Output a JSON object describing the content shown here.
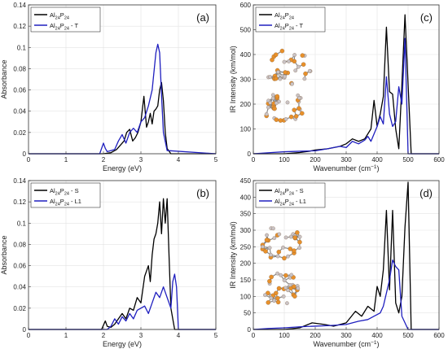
{
  "chart_data": [
    {
      "id": "a",
      "type": "line",
      "panel_label": "(a)",
      "xlabel": "Energy (eV)",
      "ylabel": "Absorbance",
      "xlim": [
        0,
        5
      ],
      "ylim": [
        0,
        0.14
      ],
      "xticks": [
        0,
        1,
        2,
        3,
        4,
        5
      ],
      "yticks": [
        0,
        0.02,
        0.04,
        0.06,
        0.08,
        0.1,
        0.12,
        0.14
      ],
      "ytick_labels": [
        "0",
        "0.02",
        "0.04",
        "0.06",
        "0.08",
        "0.1",
        "0.12",
        "0.14"
      ],
      "grid": true,
      "legend_position": "top-left",
      "series": [
        {
          "name": "Al24P24",
          "legend_base": "Al",
          "legend_sub1": "24",
          "legend_mid": "P",
          "legend_sub2": "24",
          "legend_suffix": "",
          "color": "#000000",
          "x": [
            0,
            2.0,
            2.2,
            2.35,
            2.45,
            2.55,
            2.62,
            2.7,
            2.78,
            2.85,
            2.92,
            3.0,
            3.08,
            3.15,
            3.2,
            3.25,
            3.3,
            3.35,
            3.4,
            3.45,
            3.5,
            3.55,
            3.6,
            3.65,
            3.7,
            3.8,
            5
          ],
          "y": [
            0,
            0,
            0.001,
            0.004,
            0.008,
            0.012,
            0.02,
            0.023,
            0.012,
            0.015,
            0.02,
            0.03,
            0.054,
            0.025,
            0.03,
            0.038,
            0.028,
            0.04,
            0.042,
            0.045,
            0.06,
            0.067,
            0.05,
            0.02,
            0.005,
            0,
            0
          ]
        },
        {
          "name": "Al24P24 - T",
          "legend_base": "Al",
          "legend_sub1": "24",
          "legend_mid": "P",
          "legend_sub2": "24",
          "legend_suffix": " - T",
          "color": "#1f1fbf",
          "x": [
            0,
            1.9,
            2.0,
            2.05,
            2.1,
            2.2,
            2.3,
            2.4,
            2.5,
            2.6,
            2.7,
            2.8,
            2.9,
            3.0,
            3.1,
            3.2,
            3.3,
            3.4,
            3.45,
            3.5,
            3.55,
            3.6,
            3.7,
            5
          ],
          "y": [
            0,
            0,
            0.01,
            0.005,
            0.002,
            0.003,
            0.004,
            0.012,
            0.018,
            0.01,
            0.02,
            0.024,
            0.02,
            0.03,
            0.034,
            0.045,
            0.06,
            0.095,
            0.103,
            0.095,
            0.055,
            0.02,
            0.003,
            0
          ]
        }
      ]
    },
    {
      "id": "b",
      "type": "line",
      "panel_label": "(b)",
      "xlabel": "Energy (eV)",
      "ylabel": "Absorbance",
      "xlim": [
        0,
        5
      ],
      "ylim": [
        0,
        0.14
      ],
      "xticks": [
        0,
        1,
        2,
        3,
        4,
        5
      ],
      "yticks": [
        0,
        0.02,
        0.04,
        0.06,
        0.08,
        0.1,
        0.12,
        0.14
      ],
      "ytick_labels": [
        "0",
        "0.02",
        "0.04",
        "0.06",
        "0.08",
        "0.1",
        "0.12",
        "0.14"
      ],
      "grid": true,
      "legend_position": "top-left",
      "series": [
        {
          "name": "Al24P24 - S",
          "legend_base": "Al",
          "legend_sub1": "24",
          "legend_mid": "P",
          "legend_sub2": "24",
          "legend_suffix": " - S",
          "color": "#000000",
          "x": [
            0,
            1.95,
            2.05,
            2.1,
            2.2,
            2.3,
            2.4,
            2.5,
            2.6,
            2.7,
            2.8,
            2.9,
            3.0,
            3.1,
            3.2,
            3.25,
            3.3,
            3.35,
            3.4,
            3.45,
            3.5,
            3.55,
            3.6,
            3.65,
            3.7,
            3.75,
            3.8,
            3.9,
            5
          ],
          "y": [
            0,
            0,
            0.008,
            0.003,
            0.002,
            0.005,
            0.01,
            0.015,
            0.01,
            0.02,
            0.018,
            0.03,
            0.025,
            0.05,
            0.06,
            0.045,
            0.07,
            0.085,
            0.09,
            0.1,
            0.12,
            0.09,
            0.123,
            0.1,
            0.123,
            0.07,
            0.02,
            0,
            0
          ]
        },
        {
          "name": "Al24P24 - L1",
          "legend_base": "Al",
          "legend_sub1": "24",
          "legend_mid": "P",
          "legend_sub2": "24",
          "legend_suffix": " - L1",
          "color": "#1f1fbf",
          "x": [
            0,
            2.1,
            2.2,
            2.3,
            2.4,
            2.5,
            2.6,
            2.7,
            2.8,
            2.9,
            3.0,
            3.1,
            3.2,
            3.3,
            3.4,
            3.5,
            3.6,
            3.7,
            3.8,
            3.85,
            3.9,
            3.95,
            4.0,
            5
          ],
          "y": [
            0,
            0,
            0.003,
            0.01,
            0.005,
            0.012,
            0.008,
            0.015,
            0.01,
            0.018,
            0.02,
            0.022,
            0.015,
            0.025,
            0.035,
            0.03,
            0.04,
            0.03,
            0.02,
            0.045,
            0.052,
            0.04,
            0,
            0
          ]
        }
      ]
    },
    {
      "id": "c",
      "type": "line",
      "panel_label": "(c)",
      "xlabel": "Wavenumber (cm",
      "xlabel_sup": "−1",
      "xlabel_end": ")",
      "ylabel": "IR Intensity (km/mol)",
      "xlim": [
        0,
        600
      ],
      "ylim": [
        0,
        600
      ],
      "xticks": [
        0,
        100,
        200,
        300,
        400,
        500,
        600
      ],
      "yticks": [
        0,
        100,
        200,
        300,
        400,
        500,
        600
      ],
      "ytick_labels": [
        "0",
        "100",
        "200",
        "300",
        "400",
        "500",
        "600"
      ],
      "grid": true,
      "legend_position": "top-left",
      "series": [
        {
          "name": "Al24P24",
          "legend_base": "Al",
          "legend_sub1": "24",
          "legend_mid": "P",
          "legend_sub2": "24",
          "legend_suffix": "",
          "color": "#000000",
          "x": [
            0,
            100,
            150,
            180,
            200,
            240,
            280,
            300,
            320,
            340,
            360,
            380,
            390,
            400,
            410,
            420,
            430,
            440,
            450,
            460,
            470,
            480,
            490,
            500,
            510,
            600
          ],
          "y": [
            0,
            0,
            5,
            10,
            15,
            20,
            30,
            40,
            60,
            50,
            60,
            100,
            215,
            110,
            160,
            230,
            510,
            250,
            240,
            100,
            20,
            280,
            560,
            280,
            0,
            0
          ]
        },
        {
          "name": "Al24P24 - T",
          "legend_base": "Al",
          "legend_sub1": "24",
          "legend_mid": "P",
          "legend_sub2": "24",
          "legend_suffix": " - T",
          "color": "#1f1fbf",
          "x": [
            0,
            60,
            100,
            150,
            200,
            240,
            280,
            300,
            320,
            340,
            360,
            370,
            380,
            390,
            400,
            410,
            420,
            430,
            440,
            450,
            460,
            470,
            480,
            490,
            500,
            600
          ],
          "y": [
            0,
            5,
            8,
            10,
            12,
            20,
            30,
            25,
            50,
            40,
            55,
            70,
            50,
            80,
            110,
            150,
            120,
            310,
            160,
            110,
            130,
            270,
            200,
            465,
            0,
            0
          ]
        }
      ]
    },
    {
      "id": "d",
      "type": "line",
      "panel_label": "(d)",
      "xlabel": "Wavenumber (cm",
      "xlabel_sup": "−1",
      "xlabel_end": ")",
      "ylabel": "IR Intensity (km/mol)",
      "xlim": [
        0,
        600
      ],
      "ylim": [
        0,
        450
      ],
      "xticks": [
        0,
        100,
        200,
        300,
        400,
        500,
        600
      ],
      "yticks": [
        0,
        50,
        100,
        150,
        200,
        250,
        300,
        350,
        400,
        450
      ],
      "ytick_labels": [
        "0",
        "50",
        "100",
        "150",
        "200",
        "250",
        "300",
        "350",
        "400",
        "450"
      ],
      "grid": true,
      "legend_position": "top-left",
      "series": [
        {
          "name": "Al24P24 - S",
          "legend_base": "Al",
          "legend_sub1": "24",
          "legend_mid": "P",
          "legend_sub2": "24",
          "legend_suffix": " - S",
          "color": "#000000",
          "x": [
            0,
            100,
            150,
            190,
            230,
            260,
            300,
            330,
            350,
            370,
            390,
            400,
            410,
            420,
            430,
            440,
            450,
            460,
            470,
            480,
            490,
            500,
            510,
            600
          ],
          "y": [
            0,
            0,
            5,
            20,
            15,
            10,
            20,
            55,
            40,
            70,
            55,
            130,
            100,
            180,
            360,
            120,
            360,
            80,
            50,
            100,
            310,
            445,
            0,
            0
          ]
        },
        {
          "name": "Al24P24 - L1",
          "legend_base": "Al",
          "legend_sub1": "24",
          "legend_mid": "P",
          "legend_sub2": "24",
          "legend_suffix": " - L1",
          "color": "#1f1fbf",
          "x": [
            0,
            50,
            100,
            150,
            200,
            250,
            300,
            340,
            370,
            390,
            410,
            420,
            430,
            440,
            450,
            460,
            470,
            480,
            490,
            500,
            600
          ],
          "y": [
            0,
            3,
            5,
            8,
            10,
            12,
            15,
            25,
            30,
            40,
            50,
            70,
            110,
            150,
            210,
            190,
            180,
            40,
            20,
            0,
            0
          ]
        }
      ]
    }
  ]
}
